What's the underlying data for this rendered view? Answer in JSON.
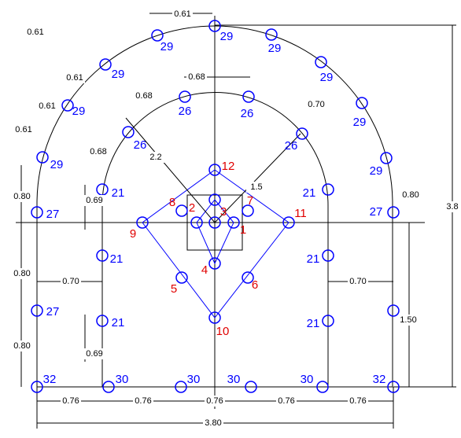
{
  "holes": [
    "29",
    "29",
    "29",
    "29",
    "29",
    "29",
    "29",
    "29",
    "29",
    "26",
    "26",
    "26",
    "26",
    "21",
    "21",
    "21",
    "21",
    "21",
    "21",
    "27",
    "27",
    "27",
    "32",
    "32",
    "30",
    "30",
    "30",
    "30",
    "12",
    "11",
    "10",
    "9",
    "8",
    "7",
    "6",
    "5",
    "3",
    "2",
    "1",
    "4"
  ],
  "dimensions": [
    "0.61",
    "0.61",
    "0.61",
    "0.61",
    "0.61",
    "0.68",
    "0.68",
    "0.68",
    "0.70",
    "2.2",
    "1.5",
    "0.80",
    "0.80",
    "0.80",
    "0.80",
    "0.69",
    "0.69",
    "0.70",
    "0.70",
    "3.8",
    "1.50",
    "0.76",
    "0.76",
    "0.76",
    "0.76",
    "0.76",
    "3.80"
  ]
}
